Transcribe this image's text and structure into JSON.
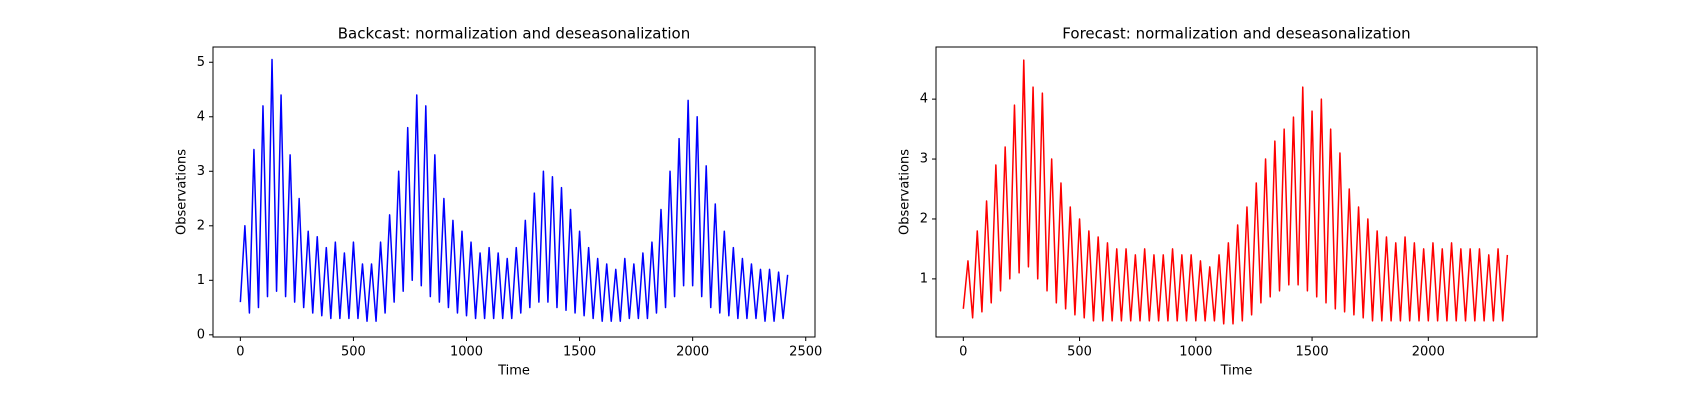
{
  "chart_data": [
    {
      "type": "line",
      "title": "Backcast: normalization and deseasonalization",
      "xlabel": "Time",
      "ylabel": "Observations",
      "color": "#0000ff",
      "x": [
        0,
        20,
        40,
        60,
        80,
        100,
        120,
        140,
        160,
        180,
        200,
        220,
        240,
        260,
        280,
        300,
        320,
        340,
        360,
        380,
        400,
        420,
        440,
        460,
        480,
        500,
        520,
        540,
        560,
        580,
        600,
        620,
        640,
        660,
        680,
        700,
        720,
        740,
        760,
        780,
        800,
        820,
        840,
        860,
        880,
        900,
        920,
        940,
        960,
        980,
        1000,
        1020,
        1040,
        1060,
        1080,
        1100,
        1120,
        1140,
        1160,
        1180,
        1200,
        1220,
        1240,
        1260,
        1280,
        1300,
        1320,
        1340,
        1360,
        1380,
        1400,
        1420,
        1440,
        1460,
        1480,
        1500,
        1520,
        1540,
        1560,
        1580,
        1600,
        1620,
        1640,
        1660,
        1680,
        1700,
        1720,
        1740,
        1760,
        1780,
        1800,
        1820,
        1840,
        1860,
        1880,
        1900,
        1920,
        1940,
        1960,
        1980,
        2000,
        2020,
        2040,
        2060,
        2080,
        2100,
        2120,
        2140,
        2160,
        2180,
        2200,
        2220,
        2240,
        2260,
        2280,
        2300,
        2320,
        2340,
        2360,
        2380,
        2400,
        2420
      ],
      "values": [
        0.6,
        2.0,
        0.4,
        3.4,
        0.5,
        4.2,
        0.7,
        5.05,
        0.8,
        4.4,
        0.7,
        3.3,
        0.6,
        2.5,
        0.5,
        1.9,
        0.4,
        1.8,
        0.35,
        1.6,
        0.3,
        1.7,
        0.3,
        1.5,
        0.3,
        1.7,
        0.3,
        1.3,
        0.25,
        1.3,
        0.25,
        1.7,
        0.4,
        2.2,
        0.6,
        3.0,
        0.8,
        3.8,
        1.0,
        4.4,
        0.9,
        4.2,
        0.7,
        3.3,
        0.6,
        2.5,
        0.5,
        2.1,
        0.4,
        1.9,
        0.35,
        1.7,
        0.3,
        1.5,
        0.3,
        1.6,
        0.3,
        1.5,
        0.3,
        1.4,
        0.3,
        1.6,
        0.4,
        2.1,
        0.5,
        2.6,
        0.6,
        3.0,
        0.6,
        2.9,
        0.5,
        2.7,
        0.45,
        2.3,
        0.4,
        1.9,
        0.35,
        1.6,
        0.3,
        1.4,
        0.25,
        1.3,
        0.25,
        1.2,
        0.25,
        1.4,
        0.3,
        1.3,
        0.3,
        1.5,
        0.3,
        1.7,
        0.4,
        2.3,
        0.5,
        3.0,
        0.7,
        3.6,
        0.9,
        4.3,
        0.9,
        4.0,
        0.7,
        3.1,
        0.5,
        2.4,
        0.4,
        1.9,
        0.35,
        1.6,
        0.3,
        1.4,
        0.3,
        1.3,
        0.3,
        1.2,
        0.25,
        1.2,
        0.25,
        1.15,
        0.3,
        1.1
      ],
      "xlim": [
        -121,
        2541
      ],
      "xticks": [
        0,
        500,
        1000,
        1500,
        2000,
        2500
      ],
      "ylim": [
        -0.04,
        5.28
      ],
      "yticks": [
        0,
        1,
        2,
        3,
        4,
        5
      ],
      "grid": false
    },
    {
      "type": "line",
      "title": "Forecast: normalization and deseasonalization",
      "xlabel": "Time",
      "ylabel": "Observations",
      "color": "#ff0000",
      "x": [
        0,
        20,
        40,
        60,
        80,
        100,
        120,
        140,
        160,
        180,
        200,
        220,
        240,
        260,
        280,
        300,
        320,
        340,
        360,
        380,
        400,
        420,
        440,
        460,
        480,
        500,
        520,
        540,
        560,
        580,
        600,
        620,
        640,
        660,
        680,
        700,
        720,
        740,
        760,
        780,
        800,
        820,
        840,
        860,
        880,
        900,
        920,
        940,
        960,
        980,
        1000,
        1020,
        1040,
        1060,
        1080,
        1100,
        1120,
        1140,
        1160,
        1180,
        1200,
        1220,
        1240,
        1260,
        1280,
        1300,
        1320,
        1340,
        1360,
        1380,
        1400,
        1420,
        1440,
        1460,
        1480,
        1500,
        1520,
        1540,
        1560,
        1580,
        1600,
        1620,
        1640,
        1660,
        1680,
        1700,
        1720,
        1740,
        1760,
        1780,
        1800,
        1820,
        1840,
        1860,
        1880,
        1900,
        1920,
        1940,
        1960,
        1980,
        2000,
        2020,
        2040,
        2060,
        2080,
        2100,
        2120,
        2140,
        2160,
        2180,
        2200,
        2220,
        2240,
        2260,
        2280,
        2300,
        2320,
        2340
      ],
      "values": [
        0.5,
        1.3,
        0.35,
        1.8,
        0.45,
        2.3,
        0.6,
        2.9,
        0.8,
        3.2,
        1.0,
        3.9,
        1.1,
        4.65,
        1.2,
        4.2,
        1.0,
        4.1,
        0.8,
        3.0,
        0.6,
        2.6,
        0.5,
        2.2,
        0.4,
        2.0,
        0.35,
        1.8,
        0.3,
        1.7,
        0.3,
        1.6,
        0.3,
        1.5,
        0.3,
        1.5,
        0.3,
        1.4,
        0.3,
        1.5,
        0.3,
        1.4,
        0.3,
        1.4,
        0.3,
        1.5,
        0.3,
        1.4,
        0.3,
        1.4,
        0.3,
        1.3,
        0.3,
        1.2,
        0.3,
        1.4,
        0.25,
        1.6,
        0.25,
        1.9,
        0.3,
        2.2,
        0.4,
        2.6,
        0.6,
        3.0,
        0.7,
        3.3,
        0.8,
        3.5,
        0.9,
        3.7,
        0.9,
        4.2,
        0.8,
        3.8,
        0.7,
        4.0,
        0.6,
        3.5,
        0.5,
        3.1,
        0.45,
        2.5,
        0.4,
        2.2,
        0.35,
        2.0,
        0.3,
        1.8,
        0.3,
        1.7,
        0.3,
        1.6,
        0.3,
        1.7,
        0.3,
        1.6,
        0.3,
        1.5,
        0.3,
        1.6,
        0.3,
        1.5,
        0.3,
        1.6,
        0.3,
        1.5,
        0.3,
        1.5,
        0.3,
        1.5,
        0.3,
        1.4,
        0.3,
        1.5,
        0.3,
        1.4
      ],
      "xlim": [
        -117.5,
        2467.5
      ],
      "xticks": [
        0,
        500,
        1000,
        1500,
        2000
      ],
      "ylim": [
        0.03,
        4.87
      ],
      "yticks": [
        1,
        2,
        3,
        4
      ],
      "grid": false
    }
  ]
}
